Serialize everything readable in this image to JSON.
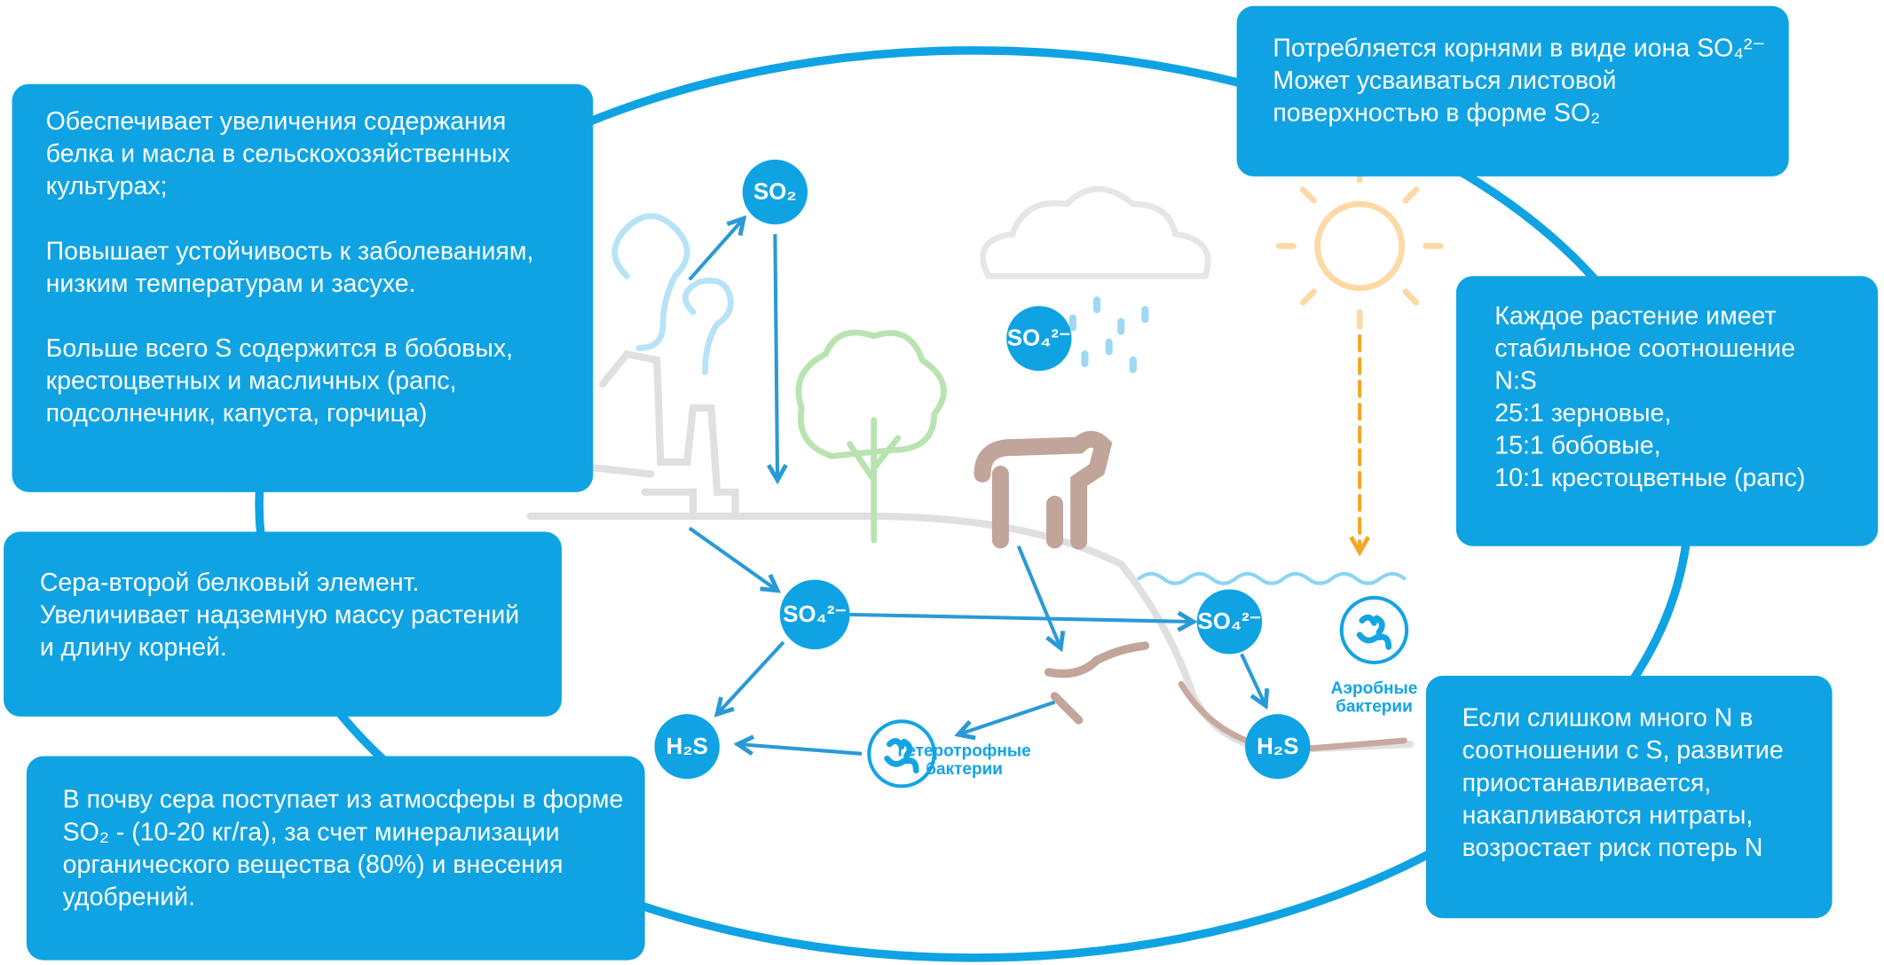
{
  "boxes": [
    {
      "paragraphs": [
        [
          "Обеспечивает увеличения содержания",
          "белка и масла в сельскохозяйственных",
          "культурах;"
        ],
        [
          "Повышает устойчивость к заболеваниям,",
          "низким температурам и засухе."
        ],
        [
          "Больше всего S содержится в бобовых,",
          "крестоцветных и масличных (рапс,",
          "подсолнечник, капуста, горчица)"
        ]
      ]
    },
    {
      "paragraphs": [
        [
          "Потребляется корнями в виде иона SO₄²⁻",
          "Может усваиваться листовой",
          "поверхностью в форме SO₂"
        ]
      ]
    },
    {
      "paragraphs": [
        [
          "Каждое растение имеет",
          "стабильное соотношение",
          "N:S",
          "25:1 зерновые,",
          "15:1 бобовые,",
          "10:1 крестоцветные (рапс)"
        ]
      ]
    },
    {
      "paragraphs": [
        [
          "Сера-второй белковый элемент.",
          "Увеличивает надземную массу растений",
          "и длину корней."
        ]
      ]
    },
    {
      "paragraphs": [
        [
          "В почву сера поступает из атмосферы в форме",
          "SO₂ - (10-20 кг/га), за счет минерализации",
          "органического вещества (80%) и внесения",
          "удобрений."
        ]
      ]
    },
    {
      "paragraphs": [
        [
          "Если слишком много N в",
          "соотношении с S, развитие",
          "приостанавливается,",
          "накапливаются нитраты,",
          "возростает риск потерь N"
        ]
      ]
    }
  ],
  "nodes": [
    "SO₂",
    "SO₄²⁻",
    "SO₄²⁻",
    "SO₄²⁻",
    "H₂S",
    "H₂S"
  ],
  "bacteria": [
    {
      "lines": [
        "Гетеротрофные",
        "бактерии"
      ]
    },
    {
      "lines": [
        "Аэробные",
        "бактерии"
      ]
    }
  ]
}
